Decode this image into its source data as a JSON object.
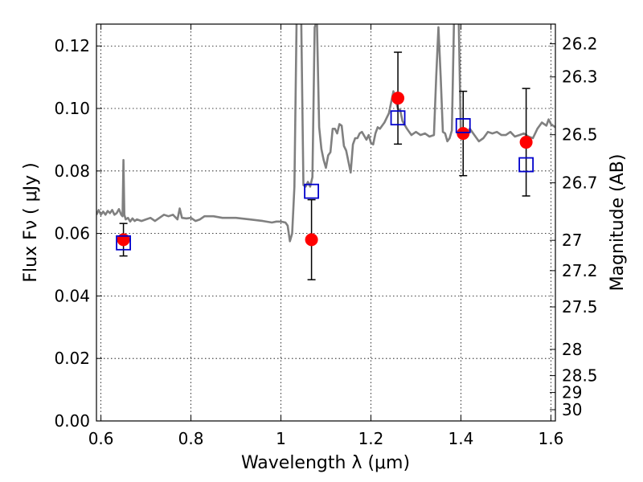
{
  "chart_data": {
    "type": "scatter",
    "xlabel": "Wavelength  λ (μm)",
    "ylabel": "Flux  Fν ( μJy )",
    "ylabel_right": "Magnitude (AB)",
    "xlim": [
      0.59,
      1.61
    ],
    "ylim": [
      0.0,
      0.127
    ],
    "grid": true,
    "x_ticks": [
      0.6,
      0.8,
      1.0,
      1.2,
      1.4,
      1.6
    ],
    "x_tick_labels": [
      "0.6",
      "0.8",
      "1",
      "1.2",
      "1.4",
      "1.6"
    ],
    "y_ticks": [
      0.0,
      0.02,
      0.04,
      0.06,
      0.08,
      0.1,
      0.12
    ],
    "y_tick_labels": [
      "0.00",
      "0.02",
      "0.04",
      "0.06",
      "0.08",
      "0.10",
      "0.12"
    ],
    "right_ticks": [
      {
        "label": "26.2",
        "flux": 0.1207
      },
      {
        "label": "26.3",
        "flux": 0.1101
      },
      {
        "label": "26.5",
        "flux": 0.0916
      },
      {
        "label": "26.7",
        "flux": 0.0762
      },
      {
        "label": "27",
        "flux": 0.0578
      },
      {
        "label": "27.2",
        "flux": 0.0481
      },
      {
        "label": "27.5",
        "flux": 0.0365
      },
      {
        "label": "28",
        "flux": 0.0229
      },
      {
        "label": "28.5",
        "flux": 0.0145
      },
      {
        "label": "29",
        "flux": 0.0091
      },
      {
        "label": "30",
        "flux": 0.0036
      }
    ],
    "series": [
      {
        "style": "line",
        "color": "#808080",
        "points": [
          [
            0.59,
            0.066
          ],
          [
            0.595,
            0.0675
          ],
          [
            0.6,
            0.066
          ],
          [
            0.605,
            0.067
          ],
          [
            0.61,
            0.066
          ],
          [
            0.615,
            0.0672
          ],
          [
            0.62,
            0.0665
          ],
          [
            0.625,
            0.0675
          ],
          [
            0.63,
            0.066
          ],
          [
            0.635,
            0.0665
          ],
          [
            0.64,
            0.0678
          ],
          [
            0.645,
            0.066
          ],
          [
            0.648,
            0.0655
          ],
          [
            0.65,
            0.0835
          ],
          [
            0.652,
            0.066
          ],
          [
            0.655,
            0.0645
          ],
          [
            0.66,
            0.065
          ],
          [
            0.665,
            0.0638
          ],
          [
            0.67,
            0.0648
          ],
          [
            0.675,
            0.064
          ],
          [
            0.68,
            0.0645
          ],
          [
            0.69,
            0.064
          ],
          [
            0.7,
            0.0645
          ],
          [
            0.71,
            0.065
          ],
          [
            0.72,
            0.064
          ],
          [
            0.73,
            0.065
          ],
          [
            0.74,
            0.066
          ],
          [
            0.75,
            0.0655
          ],
          [
            0.76,
            0.066
          ],
          [
            0.77,
            0.0645
          ],
          [
            0.775,
            0.068
          ],
          [
            0.78,
            0.065
          ],
          [
            0.79,
            0.0648
          ],
          [
            0.8,
            0.065
          ],
          [
            0.81,
            0.064
          ],
          [
            0.82,
            0.0645
          ],
          [
            0.83,
            0.0655
          ],
          [
            0.85,
            0.0655
          ],
          [
            0.87,
            0.065
          ],
          [
            0.9,
            0.065
          ],
          [
            0.93,
            0.0645
          ],
          [
            0.96,
            0.064
          ],
          [
            0.98,
            0.0635
          ],
          [
            0.99,
            0.0638
          ],
          [
            1.0,
            0.0638
          ],
          [
            1.01,
            0.0635
          ],
          [
            1.015,
            0.0625
          ],
          [
            1.02,
            0.0575
          ],
          [
            1.025,
            0.06
          ],
          [
            1.03,
            0.075
          ],
          [
            1.035,
            0.13
          ],
          [
            1.045,
            0.13
          ],
          [
            1.05,
            0.0755
          ],
          [
            1.055,
            0.075
          ],
          [
            1.06,
            0.0765
          ],
          [
            1.065,
            0.075
          ],
          [
            1.07,
            0.078
          ],
          [
            1.075,
            0.126
          ],
          [
            1.08,
            0.128
          ],
          [
            1.085,
            0.094
          ],
          [
            1.09,
            0.087
          ],
          [
            1.095,
            0.0835
          ],
          [
            1.1,
            0.081
          ],
          [
            1.105,
            0.085
          ],
          [
            1.11,
            0.086
          ],
          [
            1.115,
            0.0935
          ],
          [
            1.12,
            0.0935
          ],
          [
            1.125,
            0.092
          ],
          [
            1.13,
            0.095
          ],
          [
            1.135,
            0.0945
          ],
          [
            1.14,
            0.088
          ],
          [
            1.145,
            0.0865
          ],
          [
            1.15,
            0.083
          ],
          [
            1.155,
            0.0795
          ],
          [
            1.16,
            0.0885
          ],
          [
            1.165,
            0.0905
          ],
          [
            1.17,
            0.0905
          ],
          [
            1.175,
            0.092
          ],
          [
            1.18,
            0.0925
          ],
          [
            1.19,
            0.09
          ],
          [
            1.195,
            0.0915
          ],
          [
            1.2,
            0.089
          ],
          [
            1.205,
            0.0885
          ],
          [
            1.21,
            0.092
          ],
          [
            1.215,
            0.094
          ],
          [
            1.22,
            0.0935
          ],
          [
            1.23,
            0.0955
          ],
          [
            1.24,
            0.0985
          ],
          [
            1.25,
            0.1055
          ],
          [
            1.255,
            0.1025
          ],
          [
            1.26,
            0.1
          ],
          [
            1.265,
            0.0995
          ],
          [
            1.27,
            0.096
          ],
          [
            1.28,
            0.0935
          ],
          [
            1.29,
            0.0915
          ],
          [
            1.3,
            0.0925
          ],
          [
            1.31,
            0.0915
          ],
          [
            1.32,
            0.092
          ],
          [
            1.33,
            0.091
          ],
          [
            1.34,
            0.0915
          ],
          [
            1.345,
            0.11
          ],
          [
            1.35,
            0.126
          ],
          [
            1.355,
            0.11
          ],
          [
            1.36,
            0.0925
          ],
          [
            1.365,
            0.092
          ],
          [
            1.37,
            0.0895
          ],
          [
            1.375,
            0.0905
          ],
          [
            1.38,
            0.093
          ],
          [
            1.385,
            0.13
          ],
          [
            1.39,
            0.13
          ],
          [
            1.395,
            0.13
          ],
          [
            1.4,
            0.091
          ],
          [
            1.405,
            0.0925
          ],
          [
            1.41,
            0.092
          ],
          [
            1.42,
            0.0935
          ],
          [
            1.43,
            0.0915
          ],
          [
            1.44,
            0.0895
          ],
          [
            1.45,
            0.0905
          ],
          [
            1.46,
            0.0925
          ],
          [
            1.47,
            0.092
          ],
          [
            1.48,
            0.0925
          ],
          [
            1.49,
            0.0915
          ],
          [
            1.5,
            0.0915
          ],
          [
            1.51,
            0.0925
          ],
          [
            1.52,
            0.091
          ],
          [
            1.53,
            0.0915
          ],
          [
            1.54,
            0.092
          ],
          [
            1.55,
            0.091
          ],
          [
            1.56,
            0.0905
          ],
          [
            1.57,
            0.0935
          ],
          [
            1.58,
            0.0955
          ],
          [
            1.59,
            0.0945
          ],
          [
            1.595,
            0.0965
          ],
          [
            1.6,
            0.095
          ],
          [
            1.61,
            0.094
          ]
        ]
      },
      {
        "style": "markers",
        "marker": "circle",
        "color": "#ff0000",
        "points": [
          {
            "x": 0.65,
            "y": 0.058,
            "yerr": 0.0052
          },
          {
            "x": 1.068,
            "y": 0.058,
            "yerr": 0.0128
          },
          {
            "x": 1.26,
            "y": 0.1033,
            "yerr": 0.0147
          },
          {
            "x": 1.405,
            "y": 0.092,
            "yerr": 0.0135
          },
          {
            "x": 1.545,
            "y": 0.0892,
            "yerr": 0.0172
          }
        ]
      },
      {
        "style": "markers",
        "marker": "square-open",
        "color": "#0000cc",
        "points": [
          {
            "x": 0.65,
            "y": 0.057
          },
          {
            "x": 1.068,
            "y": 0.0735
          },
          {
            "x": 1.26,
            "y": 0.097
          },
          {
            "x": 1.405,
            "y": 0.0945
          },
          {
            "x": 1.545,
            "y": 0.082
          }
        ]
      }
    ]
  }
}
